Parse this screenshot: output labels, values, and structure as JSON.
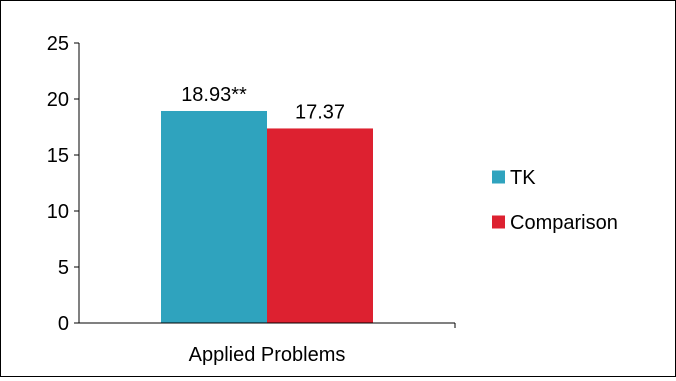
{
  "chart_data": {
    "type": "bar",
    "categories": [
      "Applied Problems"
    ],
    "series": [
      {
        "name": "TK",
        "values": [
          18.93
        ],
        "value_labels": [
          "18.93**"
        ],
        "color": "#2FA3BE"
      },
      {
        "name": "Comparison",
        "values": [
          17.37
        ],
        "value_labels": [
          "17.37"
        ],
        "color": "#DD2130"
      }
    ],
    "yticks": [
      "0",
      "5",
      "10",
      "15",
      "20",
      "25"
    ],
    "ylim": [
      0,
      25
    ],
    "grid": false,
    "legend_position": "right"
  }
}
